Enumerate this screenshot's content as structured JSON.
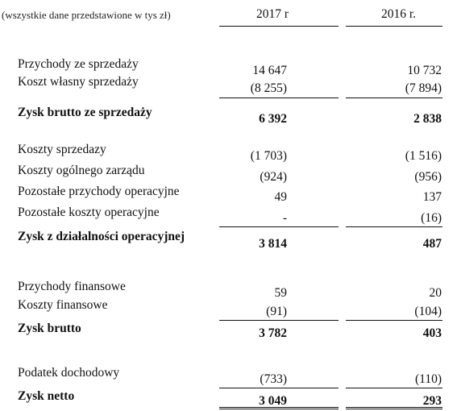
{
  "header": {
    "note": "(wszystkie dane przedstawione w tys  zł)",
    "col1": "2017 r",
    "col2": "2016 r."
  },
  "rows": [
    {
      "label": "Przychody ze sprzedaży",
      "v2017": "14 647",
      "v2016": "10 732",
      "bold": false
    },
    {
      "label": "Koszt własny sprzedaży",
      "v2017": "(8 255)",
      "v2016": "(7 894)",
      "bold": false
    },
    {
      "label": "Zysk brutto ze sprzedaży",
      "v2017": "6 392",
      "v2016": "2 838",
      "bold": true
    },
    {
      "label": "Koszty sprzedazy",
      "v2017": "(1 703)",
      "v2016": "(1 516)",
      "bold": false
    },
    {
      "label": "Koszty ogólnego zarządu",
      "v2017": "(924)",
      "v2016": "(956)",
      "bold": false
    },
    {
      "label": "Pozostałe przychody operacyjne",
      "v2017": "49",
      "v2016": "137",
      "bold": false
    },
    {
      "label": "Pozostałe koszty operacyjne",
      "v2017": "-",
      "v2016": "(16)",
      "bold": false
    },
    {
      "label": "Zysk z działalności operacyjnej",
      "v2017": "3 814",
      "v2016": "487",
      "bold": true
    },
    {
      "label": "Przychody finansowe",
      "v2017": "59",
      "v2016": "20",
      "bold": false
    },
    {
      "label": "Koszty finansowe",
      "v2017": "(91)",
      "v2016": "(104)",
      "bold": false
    },
    {
      "label": "Zysk brutto",
      "v2017": "3 782",
      "v2016": "403",
      "bold": true
    },
    {
      "label": "Podatek dochodowy",
      "v2017": "(733)",
      "v2016": "(110)",
      "bold": false
    },
    {
      "label": "Zysk netto",
      "v2017": "3 049",
      "v2016": "293",
      "bold": true
    }
  ]
}
